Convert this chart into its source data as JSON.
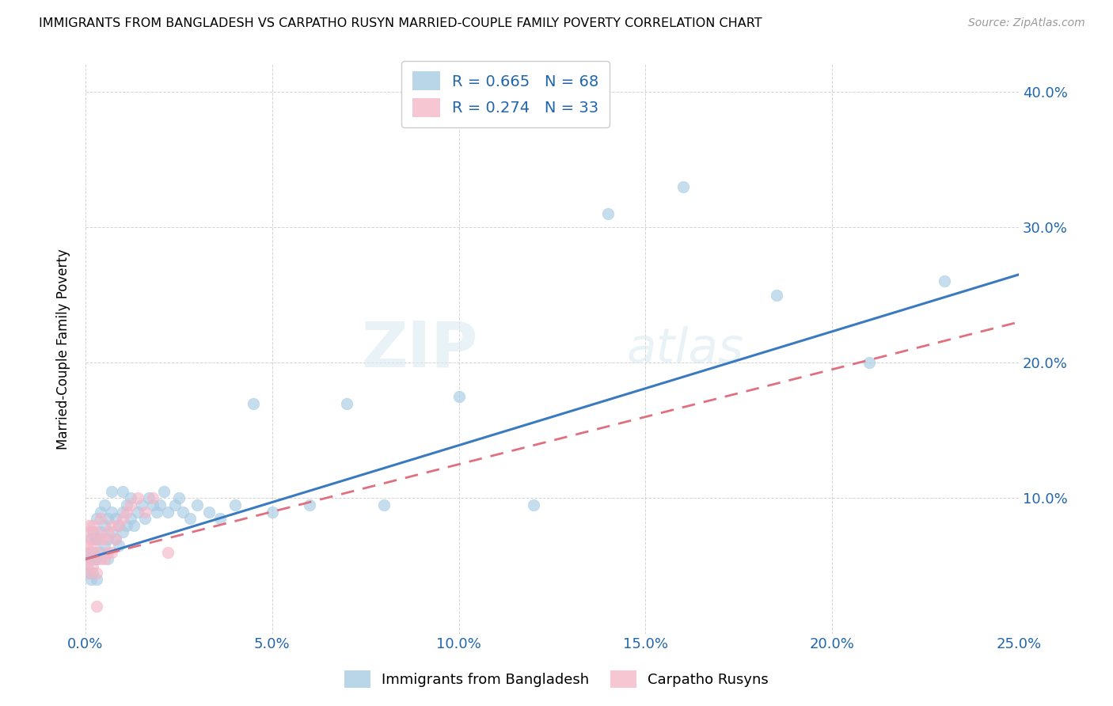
{
  "title": "IMMIGRANTS FROM BANGLADESH VS CARPATHO RUSYN MARRIED-COUPLE FAMILY POVERTY CORRELATION CHART",
  "source": "Source: ZipAtlas.com",
  "ylabel_label": "Married-Couple Family Poverty",
  "legend_label1": "Immigrants from Bangladesh",
  "legend_label2": "Carpatho Rusyns",
  "legend_r1": "R = 0.665",
  "legend_n1": "N = 68",
  "legend_r2": "R = 0.274",
  "legend_n2": "N = 33",
  "blue_color": "#a8cce4",
  "pink_color": "#f4b8c8",
  "blue_line_color": "#3a7abf",
  "pink_line_color": "#e07080",
  "watermark_zip": "ZIP",
  "watermark_atlas": "atlas",
  "xlim": [
    0.0,
    0.25
  ],
  "ylim": [
    0.0,
    0.42
  ],
  "blue_scatter_x": [
    0.0005,
    0.001,
    0.001,
    0.0015,
    0.0015,
    0.0015,
    0.002,
    0.002,
    0.002,
    0.0025,
    0.0025,
    0.003,
    0.003,
    0.003,
    0.003,
    0.004,
    0.004,
    0.004,
    0.005,
    0.005,
    0.005,
    0.006,
    0.006,
    0.006,
    0.007,
    0.007,
    0.007,
    0.008,
    0.008,
    0.009,
    0.009,
    0.01,
    0.01,
    0.01,
    0.011,
    0.011,
    0.012,
    0.012,
    0.013,
    0.014,
    0.015,
    0.016,
    0.017,
    0.018,
    0.019,
    0.02,
    0.021,
    0.022,
    0.024,
    0.025,
    0.026,
    0.028,
    0.03,
    0.033,
    0.036,
    0.04,
    0.045,
    0.05,
    0.06,
    0.07,
    0.08,
    0.1,
    0.12,
    0.14,
    0.16,
    0.185,
    0.21,
    0.23
  ],
  "blue_scatter_y": [
    0.05,
    0.045,
    0.06,
    0.04,
    0.055,
    0.07,
    0.045,
    0.06,
    0.075,
    0.055,
    0.07,
    0.04,
    0.055,
    0.07,
    0.085,
    0.06,
    0.075,
    0.09,
    0.065,
    0.08,
    0.095,
    0.055,
    0.07,
    0.085,
    0.075,
    0.09,
    0.105,
    0.07,
    0.085,
    0.065,
    0.08,
    0.075,
    0.09,
    0.105,
    0.08,
    0.095,
    0.085,
    0.1,
    0.08,
    0.09,
    0.095,
    0.085,
    0.1,
    0.095,
    0.09,
    0.095,
    0.105,
    0.09,
    0.095,
    0.1,
    0.09,
    0.085,
    0.095,
    0.09,
    0.085,
    0.095,
    0.17,
    0.09,
    0.095,
    0.17,
    0.095,
    0.175,
    0.095,
    0.31,
    0.33,
    0.25,
    0.2,
    0.26
  ],
  "pink_scatter_x": [
    0.0003,
    0.0005,
    0.0008,
    0.001,
    0.001,
    0.001,
    0.0015,
    0.0015,
    0.002,
    0.002,
    0.002,
    0.003,
    0.003,
    0.003,
    0.003,
    0.004,
    0.004,
    0.004,
    0.005,
    0.005,
    0.006,
    0.006,
    0.007,
    0.007,
    0.008,
    0.009,
    0.01,
    0.011,
    0.012,
    0.014,
    0.016,
    0.018,
    0.022
  ],
  "pink_scatter_y": [
    0.05,
    0.065,
    0.08,
    0.045,
    0.06,
    0.075,
    0.055,
    0.07,
    0.05,
    0.065,
    0.08,
    0.045,
    0.06,
    0.075,
    0.02,
    0.055,
    0.07,
    0.085,
    0.055,
    0.07,
    0.06,
    0.075,
    0.06,
    0.08,
    0.07,
    0.08,
    0.085,
    0.09,
    0.095,
    0.1,
    0.09,
    0.1,
    0.06
  ],
  "blue_line_x": [
    0.0,
    0.25
  ],
  "blue_line_y": [
    0.055,
    0.265
  ],
  "pink_line_x": [
    0.0,
    0.25
  ],
  "pink_line_y": [
    0.055,
    0.23
  ]
}
